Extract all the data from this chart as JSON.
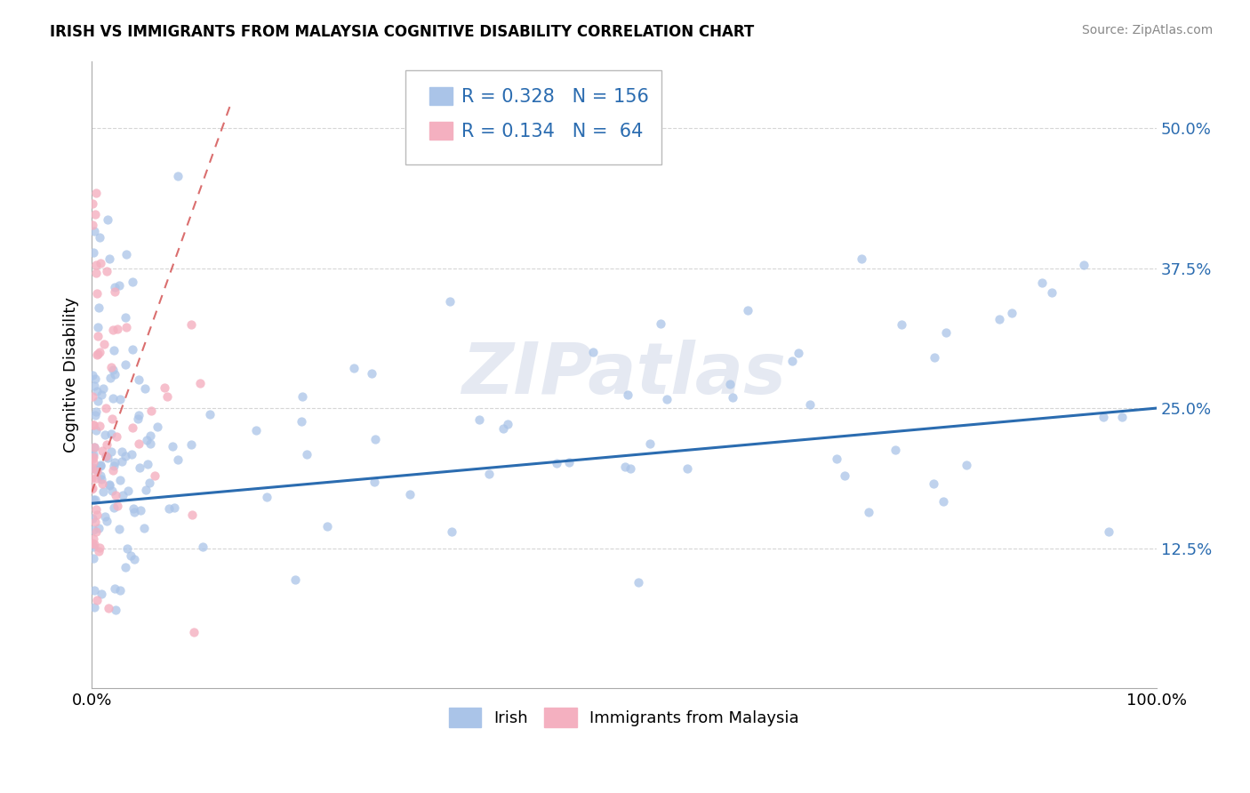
{
  "title": "IRISH VS IMMIGRANTS FROM MALAYSIA COGNITIVE DISABILITY CORRELATION CHART",
  "source": "Source: ZipAtlas.com",
  "ylabel_label": "Cognitive Disability",
  "legend_irish": {
    "R": 0.328,
    "N": 156
  },
  "legend_malaysia": {
    "R": 0.134,
    "N": 64
  },
  "irish_color": "#aac4e8",
  "malaysia_color": "#f4b0c0",
  "trendline_irish_color": "#2b6cb0",
  "trendline_malaysia_color": "#d45555",
  "watermark": "ZIPatlas",
  "background_color": "#ffffff",
  "grid_color": "#cccccc",
  "ytick_vals": [
    0.125,
    0.25,
    0.375,
    0.5
  ],
  "ytick_labels": [
    "12.5%",
    "25.0%",
    "37.5%",
    "50.0%"
  ],
  "xtick_vals": [
    0.0,
    0.25,
    0.5,
    0.75,
    1.0
  ],
  "xtick_labels": [
    "0.0%",
    "",
    "",
    "",
    "100.0%"
  ],
  "xlim": [
    0.0,
    1.0
  ],
  "ylim": [
    0.0,
    0.56
  ],
  "irish_trend": [
    0.0,
    1.0,
    0.165,
    0.25
  ],
  "malaysia_trend": [
    0.0,
    0.13,
    0.175,
    0.52
  ],
  "title_fontsize": 12,
  "tick_fontsize": 13,
  "legend_fontsize": 15
}
